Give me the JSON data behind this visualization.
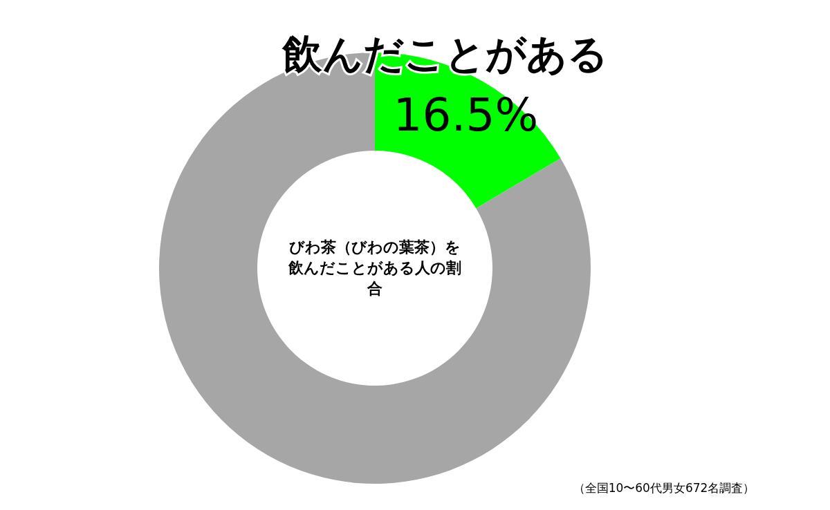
{
  "chart_data": {
    "type": "donut",
    "title": "びわ茶（びわの葉茶）を飲んだことがある人の割合",
    "categories": [
      "飲んだことがある",
      null
    ],
    "values": [
      16.5,
      83.5
    ],
    "colors": [
      "#00ff00",
      "#a6a6a6"
    ],
    "value_labels": [
      "16.5%",
      null
    ],
    "annotations": [
      "（全国10〜60代男女672名調査）"
    ]
  }
}
